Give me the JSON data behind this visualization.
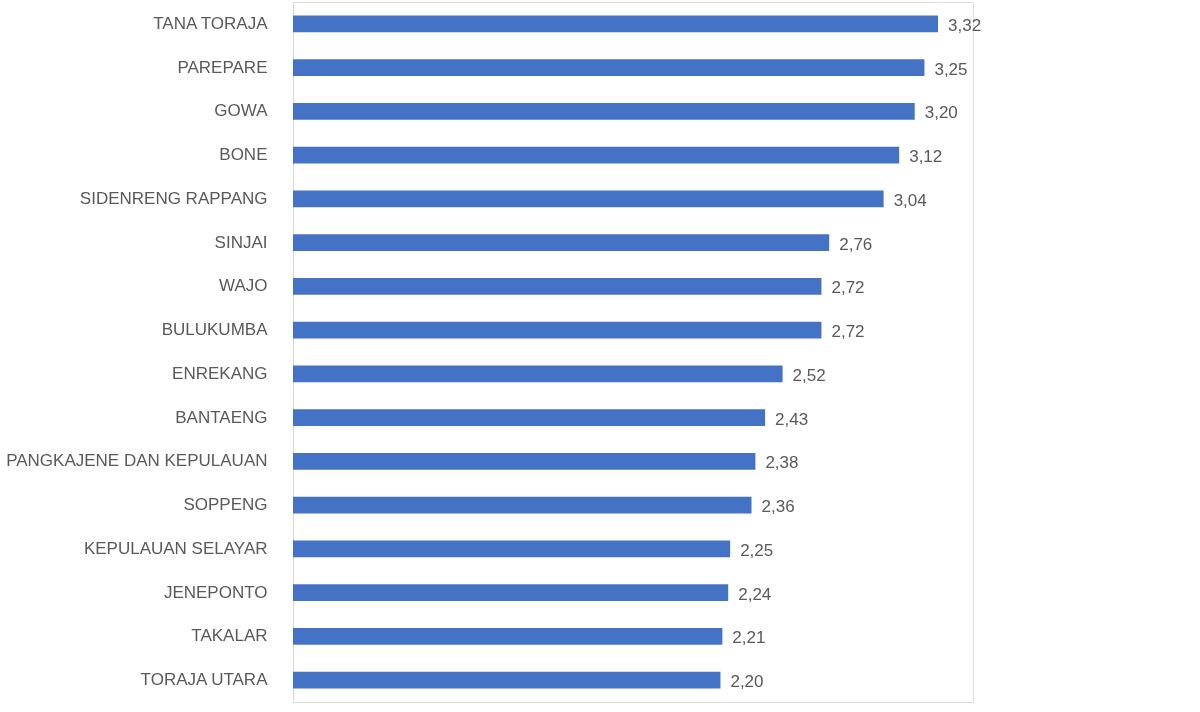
{
  "chart_data": {
    "type": "bar",
    "orientation": "horizontal",
    "categories": [
      "TANA TORAJA",
      "PAREPARE",
      "GOWA",
      "BONE",
      "SIDENRENG RAPPANG",
      "SINJAI",
      "WAJO",
      "BULUKUMBA",
      "ENREKANG",
      "BANTAENG",
      "PANGKAJENE DAN KEPULAUAN",
      "SOPPENG",
      "KEPULAUAN SELAYAR",
      "JENEPONTO",
      "TAKALAR",
      "TORAJA UTARA"
    ],
    "values": [
      3.32,
      3.25,
      3.2,
      3.12,
      3.04,
      2.76,
      2.72,
      2.72,
      2.52,
      2.43,
      2.38,
      2.36,
      2.25,
      2.24,
      2.21,
      2.2
    ],
    "value_labels": [
      "3,32",
      "3,25",
      "3,20",
      "3,12",
      "3,04",
      "2,76",
      "2,72",
      "2,72",
      "2,52",
      "2,43",
      "2,38",
      "2,36",
      "2,25",
      "2,24",
      "2,21",
      "2,20"
    ],
    "color": "#4472c4"
  }
}
